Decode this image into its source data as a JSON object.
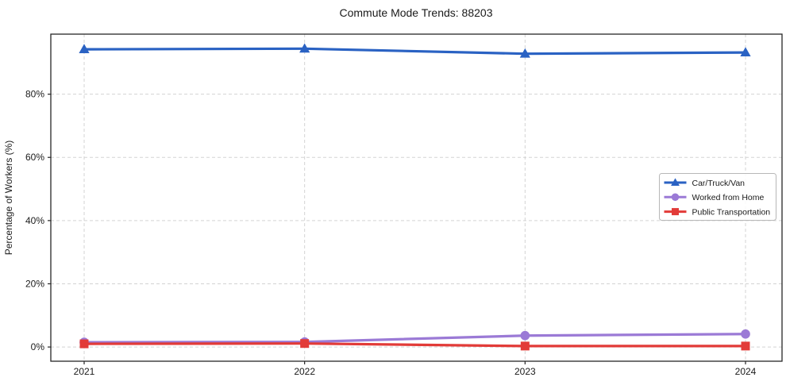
{
  "chart_data": {
    "type": "line",
    "title": "Commute Mode Trends: 88203",
    "xlabel": "",
    "ylabel": "Percentage of Workers (%)",
    "x": [
      "2021",
      "2022",
      "2023",
      "2024"
    ],
    "y_ticks": [
      0,
      20,
      40,
      60,
      80
    ],
    "y_tick_labels": [
      "0%",
      "20%",
      "40%",
      "60%",
      "80%"
    ],
    "ylim": [
      -4.5,
      99
    ],
    "grid": true,
    "grid_style": "dashed",
    "legend_position": "right-center",
    "series": [
      {
        "name": "Car/Truck/Van",
        "marker": "triangle",
        "color": "#2a62c3",
        "values": [
          94.2,
          94.4,
          92.8,
          93.2
        ]
      },
      {
        "name": "Worked from Home",
        "marker": "circle",
        "color": "#9b7ad6",
        "values": [
          1.5,
          1.6,
          3.6,
          4.1
        ]
      },
      {
        "name": "Public Transportation",
        "marker": "square",
        "color": "#e23b38",
        "values": [
          1.0,
          1.1,
          0.3,
          0.3
        ]
      }
    ]
  },
  "colors": {
    "grid": "#d3d3d3",
    "frame": "#262626",
    "tick": "#262626",
    "legend_border": "#b7b7b7",
    "background": "#ffffff"
  }
}
